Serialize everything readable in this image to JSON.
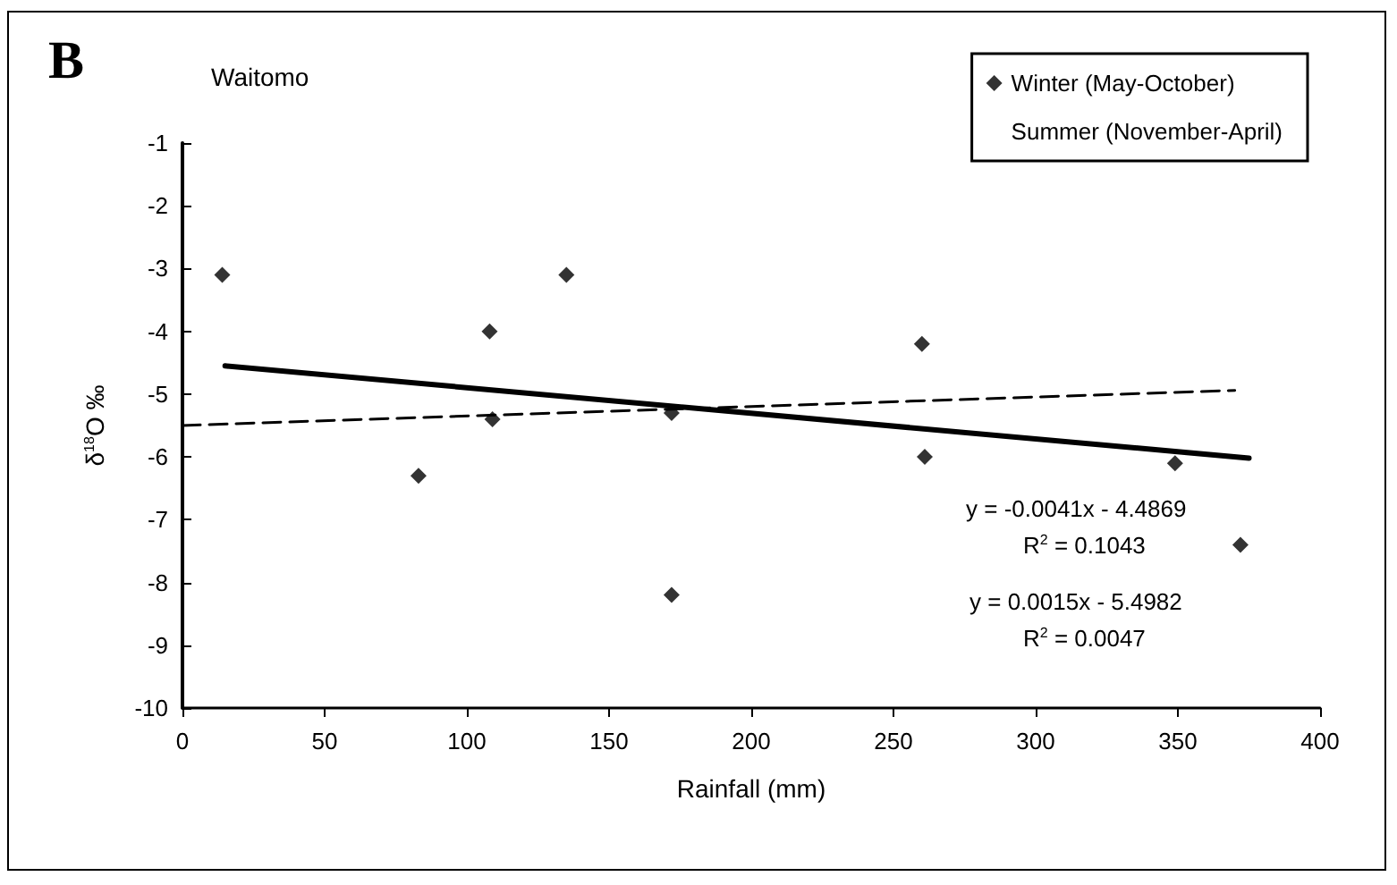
{
  "chart_data": {
    "type": "scatter",
    "title": "B",
    "xlabel": "Rainfall (mm)",
    "ylabel": "δ$^{18}$O ‰",
    "xlim": [
      0,
      400
    ],
    "xticks": [
      0,
      50,
      100,
      150,
      200,
      250,
      300,
      350,
      400
    ],
    "ylim": [
      -10,
      -1
    ],
    "yticks": [
      -10,
      -9,
      -8,
      -7,
      -6,
      -5,
      -4,
      -3,
      -2,
      -1
    ],
    "grid": false,
    "legend": "top right",
    "series": [
      {
        "name": "Winter (May-October)",
        "marker": "diamond",
        "color": "#000000",
        "x": [
          14,
          83,
          108,
          109,
          135,
          172,
          172,
          260,
          261,
          349,
          372
        ],
        "values": [
          -3.1,
          -6.3,
          -4.0,
          -5.4,
          -3.1,
          -5.3,
          -8.2,
          -4.2,
          -6.0,
          -6.1,
          -7.4
        ]
      },
      {
        "name": "Summer (November-April)",
        "marker": "none",
        "color": "#000000"
      },
      {
        "type": "line",
        "marker": "none",
        "line_style": "solid",
        "color": "#000000",
        "x": [
          15,
          375
        ],
        "values": [
          -4.55,
          -6.02
        ]
      },
      {
        "type": "line",
        "marker": "none",
        "line_style": "dashed",
        "color": "#000000",
        "x": [
          0,
          370
        ],
        "values": [
          -5.5,
          -4.94
        ]
      }
    ],
    "annotations": [
      "Waitomo",
      "y = -0.0041x - 4.4869",
      "R$^{2}$ = 0.1043",
      "y = 0.0015x - 5.4982",
      "R$^{2}$ = 0.0047"
    ]
  }
}
